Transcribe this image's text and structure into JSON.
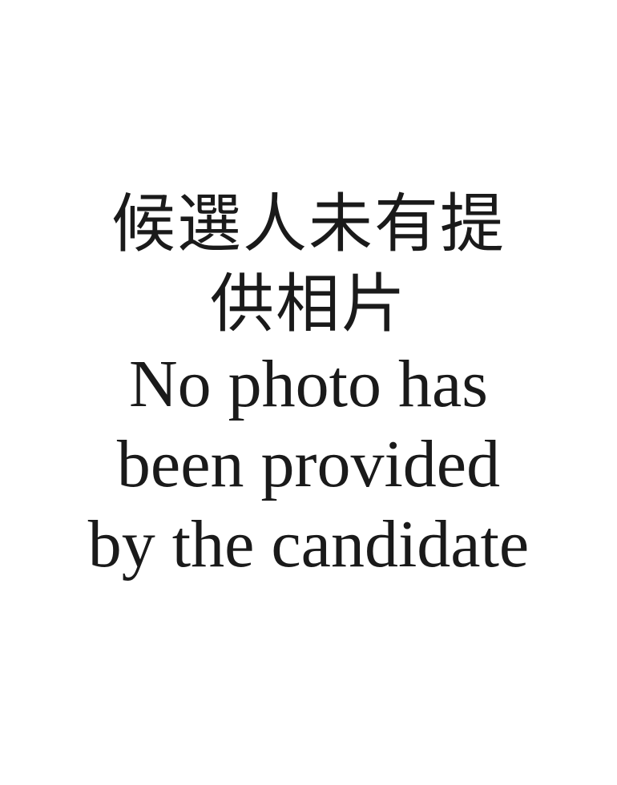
{
  "placeholder": {
    "zh_lines": [
      "候選人未有提",
      "供相片"
    ],
    "en_lines": [
      "No photo has",
      "been provided",
      "by the candidate"
    ],
    "text_color": "#1a1a1a",
    "background_color": "#ffffff"
  }
}
